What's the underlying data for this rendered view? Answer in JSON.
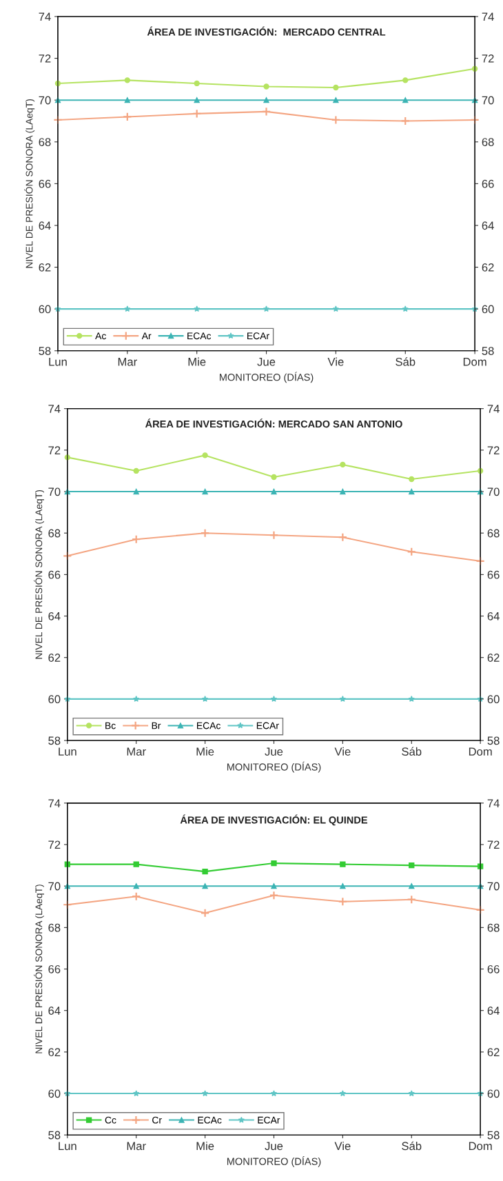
{
  "chart_data": [
    {
      "type": "line",
      "title": "ÁREA DE INVESTIGACIÓN:  MERCADO CENTRAL",
      "xlabel": "MONITOREO (DÍAS)",
      "ylabel": "NIVEL DE PRESIÓN SONORA (LAeqT)",
      "categories": [
        "Lun",
        "Mar",
        "Mie",
        "Jue",
        "Vie",
        "Sáb",
        "Dom"
      ],
      "ylim": [
        58,
        74
      ],
      "yticks": [
        58,
        60,
        62,
        64,
        66,
        68,
        70,
        72,
        74
      ],
      "y2lim": [
        58,
        74
      ],
      "y2ticks": [
        58,
        60,
        62,
        64,
        66,
        68,
        70,
        72,
        74
      ],
      "legend": "lower left",
      "grid": false,
      "series": [
        {
          "name": "Ac",
          "color": "#b5e361",
          "marker": "circle",
          "values": [
            70.8,
            70.95,
            70.8,
            70.65,
            70.6,
            70.95,
            71.5
          ]
        },
        {
          "name": "Ar",
          "color": "#f4a582",
          "marker": "cross",
          "values": [
            69.05,
            69.2,
            69.35,
            69.45,
            69.05,
            69.0,
            69.05
          ]
        },
        {
          "name": "ECAc",
          "color": "#3cb4b4",
          "marker": "triangle",
          "values": [
            70,
            70,
            70,
            70,
            70,
            70,
            70
          ]
        },
        {
          "name": "ECAr",
          "color": "#5fc5c5",
          "marker": "star",
          "values": [
            60,
            60,
            60,
            60,
            60,
            60,
            60
          ]
        }
      ]
    },
    {
      "type": "line",
      "title": "ÁREA DE INVESTIGACIÓN: MERCADO SAN ANTONIO",
      "xlabel": "MONITOREO (DÍAS)",
      "ylabel": "NIVEL DE PRESIÓN SONORA (LAeqT)",
      "categories": [
        "Lun",
        "Mar",
        "Mie",
        "Jue",
        "Vie",
        "Sáb",
        "Dom"
      ],
      "ylim": [
        58,
        74
      ],
      "yticks": [
        58,
        60,
        62,
        64,
        66,
        68,
        70,
        72,
        74
      ],
      "y2lim": [
        58,
        74
      ],
      "y2ticks": [
        58,
        60,
        62,
        64,
        66,
        68,
        70,
        72,
        74
      ],
      "legend": "lower left",
      "grid": false,
      "series": [
        {
          "name": "Bc",
          "color": "#b5e361",
          "marker": "circle",
          "values": [
            71.65,
            71.0,
            71.75,
            70.7,
            71.3,
            70.6,
            71.0
          ]
        },
        {
          "name": "Br",
          "color": "#f4a582",
          "marker": "cross",
          "values": [
            66.9,
            67.7,
            68.0,
            67.9,
            67.8,
            67.1,
            66.65
          ]
        },
        {
          "name": "ECAc",
          "color": "#3cb4b4",
          "marker": "triangle",
          "values": [
            70,
            70,
            70,
            70,
            70,
            70,
            70
          ]
        },
        {
          "name": "ECAr",
          "color": "#5fc5c5",
          "marker": "star",
          "values": [
            60,
            60,
            60,
            60,
            60,
            60,
            60
          ]
        }
      ]
    },
    {
      "type": "line",
      "title": "ÁREA DE INVESTIGACIÓN: EL QUINDE",
      "xlabel": "MONITOREO (DÍAS)",
      "ylabel": "NIVEL DE PRESIÓN SONORA (LAeqT)",
      "categories": [
        "Lun",
        "Mar",
        "Mie",
        "Jue",
        "Vie",
        "Sáb",
        "Dom"
      ],
      "ylim": [
        58,
        74
      ],
      "yticks": [
        58,
        60,
        62,
        64,
        66,
        68,
        70,
        72,
        74
      ],
      "y2lim": [
        58,
        74
      ],
      "y2ticks": [
        58,
        60,
        62,
        64,
        66,
        68,
        70,
        72,
        74
      ],
      "legend": "lower left",
      "grid": false,
      "series": [
        {
          "name": "Cc",
          "color": "#33cc33",
          "marker": "square",
          "values": [
            71.05,
            71.05,
            70.7,
            71.1,
            71.05,
            71.0,
            70.95
          ]
        },
        {
          "name": "Cr",
          "color": "#f4a582",
          "marker": "cross",
          "values": [
            69.1,
            69.5,
            68.7,
            69.55,
            69.25,
            69.35,
            68.85
          ]
        },
        {
          "name": "ECAc",
          "color": "#3cb4b4",
          "marker": "triangle",
          "values": [
            70,
            70,
            70,
            70,
            70,
            70,
            70
          ]
        },
        {
          "name": "ECAr",
          "color": "#5fc5c5",
          "marker": "star",
          "values": [
            60,
            60,
            60,
            60,
            60,
            60,
            60
          ]
        }
      ]
    }
  ]
}
